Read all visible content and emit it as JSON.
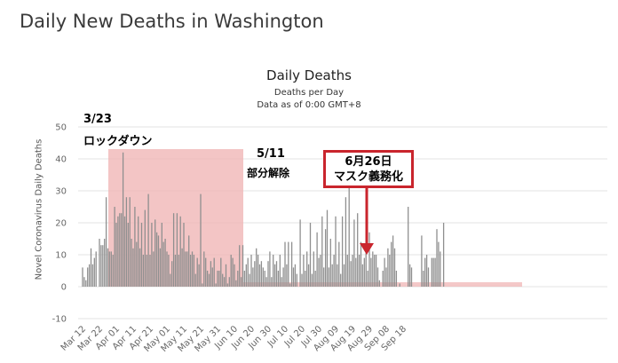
{
  "page_title": "Daily New Deaths in Washington",
  "chart_data": {
    "type": "bar",
    "title": "Daily Deaths",
    "subtitle_lines": [
      "Deaths per Day",
      "Data as of 0:00 GMT+8"
    ],
    "ylabel": "Novel Coronavirus Daily Deaths",
    "xlabel": "",
    "ylim": [
      -10,
      50
    ],
    "y_ticks": [
      -10,
      0,
      10,
      20,
      30,
      40,
      50
    ],
    "x_start": "Mar 12",
    "x_tick_labels": [
      "Mar 12",
      "Mar 22",
      "Apr 01",
      "Apr 11",
      "Apr 21",
      "May 01",
      "May 11",
      "May 21",
      "May 31",
      "Jun 10",
      "Jun 20",
      "Jun 30",
      "Jul 10",
      "Jul 20",
      "Jul 30",
      "Aug 09",
      "Aug 19",
      "Aug 29",
      "Sep 08",
      "Sep 18"
    ],
    "grid": true,
    "bar_color": "#8f8f8f",
    "values": [
      6,
      3,
      2,
      6,
      7,
      12,
      7,
      9,
      11,
      0,
      15,
      13,
      13,
      15,
      28,
      12,
      11,
      11,
      10,
      25,
      20,
      22,
      23,
      23,
      42,
      22,
      28,
      20,
      28,
      15,
      12,
      25,
      14,
      22,
      12,
      20,
      10,
      24,
      10,
      29,
      10,
      20,
      11,
      21,
      17,
      16,
      12,
      20,
      14,
      15,
      11,
      10,
      4,
      8,
      23,
      10,
      23,
      10,
      22,
      12,
      20,
      11,
      11,
      16,
      10,
      11,
      10,
      4,
      9,
      7,
      29,
      1,
      11,
      9,
      5,
      4,
      8,
      6,
      9,
      1,
      5,
      5,
      9,
      4,
      3,
      7,
      1,
      3,
      10,
      9,
      7,
      2,
      5,
      13,
      3,
      13,
      5,
      7,
      9,
      4,
      10,
      6,
      8,
      12,
      10,
      7,
      8,
      6,
      5,
      3,
      8,
      11,
      3,
      10,
      7,
      8,
      5,
      10,
      3,
      6,
      14,
      7,
      14,
      1,
      14,
      6,
      7,
      4,
      0,
      21,
      4,
      10,
      5,
      11,
      7,
      20,
      4,
      11,
      5,
      17,
      9,
      10,
      22,
      6,
      18,
      24,
      6,
      15,
      7,
      10,
      22,
      7,
      14,
      4,
      22,
      7,
      28,
      10,
      34,
      8,
      10,
      21,
      9,
      23,
      10,
      14,
      7,
      9,
      25,
      5,
      17,
      9,
      11,
      10,
      10,
      6,
      2,
      0,
      5,
      9,
      6,
      12,
      10,
      14,
      16,
      12,
      5,
      0,
      1,
      0,
      0,
      0,
      0,
      25,
      7,
      6,
      0,
      0,
      0,
      0,
      0,
      16,
      5,
      9,
      10,
      6,
      0,
      9,
      9,
      9,
      18,
      14,
      11,
      0,
      20
    ],
    "highlight_color": "#f0b6b6",
    "annotations": [
      {
        "line1": "3/23",
        "line2": "ロックダウン"
      },
      {
        "line1": "5/11",
        "line2": "部分解除"
      }
    ],
    "callout": {
      "line1": "6月26日",
      "line2": "マスク義務化",
      "border_color": "#c9252d",
      "arrow_color": "#c9252d"
    }
  }
}
